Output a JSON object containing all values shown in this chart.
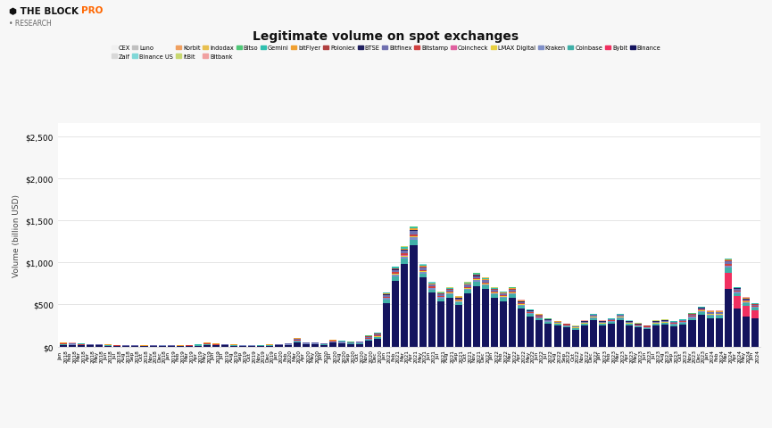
{
  "title": "Legitimate volume on spot exchanges",
  "ylabel": "Volume (billion USD)",
  "background_color": "#f7f7f7",
  "plot_bg_color": "#ffffff",
  "yticks": [
    0,
    500,
    1000,
    1500,
    2000,
    2500
  ],
  "ylim": [
    0,
    2650
  ],
  "legend_row1": [
    "CEX",
    "Zaif",
    "Luno",
    "Binance US",
    "Korbit",
    "itBit",
    "Indodax",
    "Bitbank",
    "Bitso",
    "Gemini",
    "bitFlyer",
    "Poloniex",
    "BTSE",
    "Bitfinex",
    "Bitstamp",
    "Coincheck",
    "LMAX Digital"
  ],
  "legend_row2": [
    "Kraken",
    "Coinbase",
    "Bybit",
    "Binance"
  ],
  "exchanges": [
    "CEX",
    "Zaif",
    "Luno",
    "Binance US",
    "Korbit",
    "itBit",
    "Indodax",
    "Bitbank",
    "Bitso",
    "Gemini",
    "bitFlyer",
    "Poloniex",
    "BTSE",
    "Bitfinex",
    "Bitstamp",
    "Coincheck",
    "LMAX Digital",
    "Kraken",
    "Coinbase",
    "Bybit",
    "Binance"
  ],
  "colors": {
    "CEX": "#f0f0f0",
    "Zaif": "#d8d8d8",
    "Luno": "#c0c0c0",
    "Binance US": "#80d8d8",
    "Korbit": "#f0a060",
    "itBit": "#c8d870",
    "Indodax": "#e8c050",
    "Bitbank": "#f0a0a0",
    "Bitso": "#50c878",
    "Gemini": "#30c0b0",
    "bitFlyer": "#f0a030",
    "Poloniex": "#b04040",
    "BTSE": "#202060",
    "Bitfinex": "#7070b0",
    "Bitstamp": "#d04040",
    "Coincheck": "#e060a0",
    "LMAX Digital": "#e8d040",
    "Kraken": "#8090c8",
    "Coinbase": "#40b0a8",
    "Bybit": "#f03060",
    "Binance": "#14145e"
  },
  "months": [
    "Jan\n2018",
    "Feb\n2018",
    "Mar\n2018",
    "Apr\n2018",
    "May\n2018",
    "Jun\n2018",
    "Jul\n2018",
    "Aug\n2018",
    "Sep\n2018",
    "Oct\n2018",
    "Nov\n2018",
    "Dec\n2018",
    "Jan\n2019",
    "Feb\n2019",
    "Mar\n2019",
    "Apr\n2019",
    "May\n2019",
    "Jun\n2019",
    "Jul\n2019",
    "Aug\n2019",
    "Sep\n2019",
    "Oct\n2019",
    "Nov\n2019",
    "Dec\n2019",
    "Jan\n2020",
    "Feb\n2020",
    "Mar\n2020",
    "Apr\n2020",
    "May\n2020",
    "Jun\n2020",
    "Jul\n2020",
    "Aug\n2020",
    "Sep\n2020",
    "Oct\n2020",
    "Nov\n2020",
    "Dec\n2020",
    "Jan\n2021",
    "Feb\n2021",
    "Mar\n2021",
    "Apr\n2021",
    "May\n2021",
    "Jun\n2021",
    "Jul\n2021",
    "Aug\n2021",
    "Sep\n2021",
    "Oct\n2021",
    "Nov\n2021",
    "Dec\n2021",
    "Jan\n2022",
    "Feb\n2022",
    "Mar\n2022",
    "Apr\n2022",
    "May\n2022",
    "Jun\n2022",
    "Jul\n2022",
    "Aug\n2022",
    "Sep\n2022",
    "Oct\n2022",
    "Nov\n2022",
    "Dec\n2022",
    "Jan\n2023",
    "Feb\n2023",
    "Mar\n2023",
    "Apr\n2023",
    "May\n2023",
    "Jun\n2023",
    "Jul\n2023",
    "Aug\n2023",
    "Sep\n2023",
    "Oct\n2023",
    "Nov\n2023",
    "Dec\n2023",
    "Jan\n2024",
    "Feb\n2024",
    "Mar\n2024",
    "Apr\n2024",
    "May\n2024",
    "Jun\n2024"
  ],
  "data": {
    "Binance": [
      20,
      18,
      15,
      14,
      12,
      10,
      8,
      7,
      6,
      5,
      6,
      8,
      6,
      5,
      6,
      9,
      20,
      14,
      12,
      10,
      8,
      7,
      8,
      10,
      12,
      16,
      50,
      25,
      25,
      20,
      45,
      35,
      28,
      32,
      70,
      90,
      520,
      780,
      980,
      1200,
      820,
      640,
      540,
      580,
      490,
      630,
      720,
      680,
      580,
      540,
      580,
      450,
      360,
      315,
      270,
      250,
      225,
      200,
      250,
      315,
      250,
      270,
      315,
      250,
      225,
      205,
      250,
      260,
      242,
      260,
      315,
      375,
      340,
      340,
      680,
      450,
      360,
      340
    ],
    "Bybit": [
      0,
      0,
      0,
      0,
      0,
      0,
      0,
      0,
      0,
      0,
      0,
      0,
      0,
      0,
      0,
      0,
      0,
      0,
      0,
      0,
      0,
      0,
      0,
      0,
      0,
      0,
      0,
      0,
      0,
      0,
      0,
      0,
      0,
      0,
      0,
      0,
      0,
      0,
      0,
      0,
      0,
      0,
      0,
      0,
      0,
      0,
      0,
      0,
      0,
      0,
      0,
      0,
      0,
      0,
      0,
      0,
      0,
      0,
      0,
      0,
      0,
      0,
      0,
      0,
      0,
      0,
      0,
      0,
      0,
      0,
      0,
      0,
      0,
      0,
      200,
      150,
      120,
      90
    ],
    "Coinbase": [
      5,
      4,
      4,
      3,
      3,
      3,
      2,
      2,
      2,
      2,
      3,
      3,
      3,
      2,
      3,
      4,
      7,
      5,
      4,
      4,
      3,
      3,
      4,
      4,
      4,
      6,
      13,
      7,
      7,
      6,
      9,
      8,
      7,
      8,
      14,
      18,
      38,
      50,
      60,
      65,
      45,
      36,
      32,
      36,
      32,
      40,
      46,
      42,
      36,
      34,
      38,
      32,
      26,
      22,
      20,
      18,
      16,
      15,
      18,
      22,
      18,
      20,
      22,
      18,
      16,
      15,
      18,
      19,
      18,
      20,
      25,
      32,
      27,
      27,
      55,
      36,
      34,
      27
    ],
    "Kraken": [
      3,
      2,
      2,
      2,
      2,
      2,
      1,
      1,
      1,
      1,
      1,
      2,
      1,
      1,
      2,
      2,
      4,
      3,
      2,
      2,
      2,
      2,
      2,
      2,
      2,
      3,
      7,
      4,
      4,
      3,
      5,
      4,
      3,
      4,
      7,
      9,
      16,
      22,
      27,
      29,
      20,
      16,
      14,
      16,
      14,
      18,
      20,
      18,
      16,
      15,
      16,
      14,
      11,
      9,
      8,
      7,
      7,
      6,
      8,
      10,
      8,
      9,
      10,
      8,
      7,
      7,
      8,
      8,
      8,
      9,
      11,
      14,
      12,
      12,
      22,
      15,
      14,
      12
    ],
    "LMAX Digital": [
      0,
      0,
      0,
      0,
      0,
      0,
      0,
      0,
      0,
      0,
      0,
      0,
      0,
      0,
      0,
      0,
      0,
      0,
      0,
      0,
      0,
      0,
      0,
      0,
      0,
      0,
      2,
      1,
      1,
      1,
      2,
      2,
      2,
      2,
      5,
      6,
      8,
      12,
      14,
      15,
      10,
      8,
      7,
      8,
      7,
      9,
      10,
      9,
      8,
      7,
      8,
      6,
      5,
      4,
      4,
      3,
      3,
      3,
      4,
      5,
      4,
      4,
      5,
      4,
      3,
      3,
      4,
      4,
      4,
      4,
      5,
      6,
      5,
      5,
      8,
      5,
      5,
      4
    ],
    "Coincheck": [
      2,
      2,
      1,
      1,
      1,
      0,
      0,
      0,
      0,
      0,
      0,
      0,
      0,
      0,
      0,
      0,
      0,
      0,
      0,
      0,
      0,
      0,
      0,
      0,
      0,
      0,
      0,
      0,
      0,
      0,
      0,
      0,
      0,
      0,
      0,
      0,
      0,
      0,
      1,
      1,
      1,
      0,
      0,
      0,
      0,
      0,
      0,
      0,
      0,
      0,
      0,
      0,
      0,
      0,
      0,
      0,
      0,
      0,
      0,
      0,
      0,
      0,
      0,
      0,
      0,
      0,
      0,
      0,
      0,
      0,
      0,
      0,
      0,
      0,
      0,
      0,
      0,
      0
    ],
    "Bitstamp": [
      3,
      2,
      2,
      2,
      2,
      2,
      1,
      1,
      1,
      1,
      1,
      2,
      1,
      1,
      2,
      2,
      4,
      3,
      2,
      2,
      2,
      2,
      2,
      2,
      2,
      3,
      6,
      3,
      3,
      2,
      4,
      3,
      3,
      3,
      6,
      8,
      12,
      18,
      22,
      24,
      16,
      13,
      11,
      12,
      11,
      14,
      16,
      14,
      12,
      12,
      13,
      11,
      9,
      7,
      6,
      6,
      5,
      5,
      6,
      8,
      6,
      7,
      8,
      6,
      5,
      5,
      6,
      6,
      6,
      7,
      9,
      11,
      9,
      9,
      18,
      12,
      11,
      9
    ],
    "Bitfinex": [
      8,
      7,
      6,
      5,
      4,
      4,
      3,
      2,
      2,
      2,
      2,
      3,
      2,
      2,
      3,
      3,
      6,
      5,
      4,
      3,
      3,
      3,
      3,
      3,
      4,
      5,
      11,
      5,
      5,
      5,
      7,
      6,
      5,
      6,
      12,
      14,
      20,
      28,
      35,
      38,
      26,
      20,
      18,
      20,
      17,
      22,
      26,
      23,
      20,
      19,
      20,
      17,
      13,
      11,
      10,
      9,
      8,
      7,
      10,
      12,
      10,
      11,
      12,
      10,
      9,
      8,
      10,
      10,
      10,
      11,
      13,
      16,
      14,
      14,
      28,
      19,
      18,
      14
    ],
    "BTSE": [
      0,
      0,
      0,
      0,
      0,
      0,
      0,
      0,
      0,
      0,
      0,
      0,
      0,
      0,
      0,
      0,
      0,
      0,
      0,
      0,
      0,
      0,
      0,
      0,
      0,
      0,
      1,
      0,
      0,
      0,
      1,
      1,
      1,
      1,
      2,
      3,
      4,
      6,
      7,
      8,
      5,
      4,
      3,
      4,
      3,
      4,
      5,
      4,
      4,
      3,
      4,
      3,
      2,
      2,
      2,
      1,
      1,
      1,
      2,
      2,
      2,
      2,
      2,
      2,
      2,
      1,
      2,
      2,
      2,
      2,
      3,
      3,
      3,
      3,
      6,
      4,
      4,
      3
    ],
    "Poloniex": [
      2,
      2,
      1,
      1,
      1,
      1,
      1,
      1,
      1,
      0,
      0,
      1,
      0,
      0,
      1,
      1,
      2,
      1,
      1,
      1,
      1,
      1,
      1,
      1,
      1,
      1,
      3,
      1,
      1,
      1,
      2,
      2,
      1,
      2,
      3,
      4,
      5,
      7,
      8,
      9,
      6,
      5,
      4,
      5,
      4,
      5,
      6,
      5,
      5,
      4,
      5,
      4,
      3,
      2,
      2,
      2,
      2,
      1,
      2,
      3,
      2,
      2,
      3,
      2,
      2,
      2,
      2,
      2,
      2,
      2,
      3,
      3,
      3,
      3,
      6,
      4,
      4,
      3
    ],
    "bitFlyer": [
      2,
      2,
      1,
      1,
      1,
      1,
      1,
      1,
      1,
      1,
      1,
      1,
      1,
      1,
      1,
      1,
      2,
      2,
      1,
      1,
      1,
      1,
      1,
      1,
      1,
      2,
      4,
      2,
      2,
      2,
      3,
      2,
      2,
      2,
      4,
      5,
      7,
      10,
      12,
      13,
      9,
      7,
      6,
      7,
      6,
      8,
      9,
      8,
      7,
      6,
      7,
      6,
      4,
      4,
      3,
      3,
      3,
      2,
      3,
      4,
      3,
      3,
      4,
      3,
      3,
      2,
      3,
      3,
      3,
      3,
      4,
      5,
      4,
      4,
      8,
      5,
      5,
      4
    ],
    "Gemini": [
      2,
      2,
      1,
      1,
      1,
      1,
      1,
      1,
      1,
      1,
      1,
      1,
      1,
      1,
      1,
      1,
      2,
      2,
      1,
      1,
      1,
      1,
      1,
      1,
      1,
      2,
      5,
      2,
      2,
      2,
      3,
      3,
      2,
      2,
      5,
      6,
      8,
      12,
      14,
      15,
      10,
      8,
      7,
      8,
      7,
      9,
      11,
      10,
      8,
      8,
      8,
      7,
      5,
      4,
      4,
      3,
      3,
      3,
      4,
      5,
      4,
      4,
      5,
      3,
      3,
      3,
      4,
      4,
      3,
      4,
      5,
      6,
      5,
      5,
      10,
      6,
      6,
      5
    ],
    "Bitso": [
      1,
      1,
      0,
      0,
      0,
      0,
      0,
      0,
      0,
      0,
      0,
      1,
      0,
      0,
      0,
      0,
      1,
      1,
      0,
      0,
      0,
      0,
      0,
      0,
      0,
      0,
      1,
      1,
      1,
      0,
      1,
      1,
      1,
      1,
      1,
      2,
      2,
      3,
      4,
      4,
      3,
      2,
      2,
      2,
      2,
      2,
      2,
      2,
      2,
      2,
      2,
      2,
      1,
      1,
      1,
      1,
      1,
      1,
      1,
      1,
      1,
      1,
      1,
      1,
      1,
      1,
      1,
      1,
      1,
      1,
      2,
      2,
      2,
      2,
      3,
      2,
      2,
      2
    ],
    "Bitbank": [
      2,
      2,
      1,
      0,
      0,
      0,
      0,
      0,
      0,
      0,
      0,
      0,
      0,
      0,
      0,
      0,
      1,
      0,
      0,
      0,
      0,
      0,
      0,
      0,
      0,
      0,
      1,
      0,
      0,
      0,
      0,
      0,
      0,
      0,
      1,
      1,
      1,
      2,
      2,
      2,
      1,
      1,
      1,
      1,
      1,
      1,
      1,
      1,
      1,
      1,
      1,
      1,
      1,
      1,
      0,
      0,
      0,
      0,
      1,
      1,
      1,
      1,
      1,
      0,
      0,
      0,
      0,
      0,
      0,
      0,
      1,
      1,
      1,
      1,
      1,
      1,
      1,
      0
    ],
    "Indodax": [
      0,
      0,
      0,
      0,
      0,
      0,
      0,
      0,
      0,
      0,
      0,
      0,
      0,
      0,
      0,
      0,
      0,
      0,
      0,
      0,
      0,
      0,
      0,
      0,
      0,
      0,
      0,
      0,
      0,
      0,
      0,
      0,
      0,
      0,
      0,
      0,
      1,
      1,
      1,
      1,
      1,
      1,
      1,
      1,
      1,
      1,
      1,
      1,
      1,
      1,
      1,
      1,
      1,
      1,
      0,
      0,
      0,
      0,
      0,
      0,
      0,
      0,
      0,
      0,
      0,
      0,
      0,
      0,
      0,
      0,
      0,
      0,
      0,
      0,
      0,
      0,
      0,
      0
    ],
    "itBit": [
      0,
      0,
      0,
      0,
      0,
      0,
      0,
      0,
      0,
      0,
      0,
      0,
      0,
      0,
      0,
      0,
      0,
      0,
      0,
      0,
      0,
      0,
      0,
      0,
      0,
      0,
      1,
      0,
      0,
      0,
      1,
      1,
      0,
      0,
      1,
      1,
      2,
      3,
      3,
      4,
      2,
      2,
      2,
      2,
      2,
      2,
      2,
      2,
      2,
      2,
      2,
      1,
      1,
      1,
      1,
      1,
      1,
      1,
      1,
      1,
      1,
      1,
      1,
      1,
      1,
      1,
      1,
      1,
      1,
      1,
      1,
      1,
      1,
      1,
      2,
      1,
      1,
      1
    ],
    "Korbit": [
      0,
      0,
      0,
      0,
      0,
      0,
      0,
      0,
      0,
      0,
      0,
      0,
      0,
      0,
      0,
      0,
      0,
      0,
      0,
      0,
      0,
      0,
      0,
      0,
      0,
      0,
      0,
      0,
      0,
      0,
      0,
      0,
      0,
      0,
      0,
      0,
      0,
      0,
      0,
      0,
      0,
      0,
      0,
      0,
      0,
      0,
      0,
      0,
      0,
      0,
      0,
      0,
      0,
      0,
      0,
      0,
      0,
      0,
      0,
      0,
      0,
      0,
      0,
      0,
      0,
      0,
      0,
      0,
      0,
      0,
      0,
      0,
      0,
      0,
      0,
      0,
      0,
      0
    ],
    "Binance US": [
      0,
      0,
      0,
      0,
      0,
      0,
      0,
      0,
      0,
      0,
      0,
      0,
      0,
      0,
      0,
      0,
      0,
      0,
      0,
      0,
      0,
      0,
      0,
      0,
      0,
      0,
      0,
      0,
      0,
      0,
      0,
      0,
      0,
      0,
      0,
      0,
      0,
      0,
      1,
      2,
      1,
      1,
      1,
      1,
      1,
      1,
      1,
      1,
      1,
      1,
      1,
      1,
      1,
      1,
      1,
      1,
      1,
      1,
      1,
      1,
      1,
      1,
      1,
      1,
      1,
      1,
      1,
      1,
      1,
      1,
      1,
      1,
      1,
      1,
      1,
      1,
      1,
      1
    ],
    "Luno": [
      0,
      0,
      0,
      0,
      0,
      0,
      0,
      0,
      0,
      0,
      0,
      0,
      0,
      0,
      0,
      0,
      0,
      0,
      0,
      0,
      0,
      0,
      0,
      0,
      0,
      0,
      0,
      0,
      0,
      0,
      0,
      0,
      0,
      0,
      0,
      0,
      0,
      0,
      0,
      0,
      0,
      0,
      0,
      0,
      0,
      0,
      0,
      0,
      0,
      0,
      0,
      0,
      0,
      0,
      0,
      0,
      0,
      0,
      0,
      0,
      0,
      0,
      0,
      0,
      0,
      0,
      0,
      0,
      0,
      0,
      0,
      0,
      0,
      0,
      0,
      0,
      0,
      0
    ],
    "Zaif": [
      0,
      0,
      0,
      0,
      0,
      0,
      0,
      0,
      0,
      0,
      0,
      0,
      0,
      0,
      0,
      0,
      0,
      0,
      0,
      0,
      0,
      0,
      0,
      0,
      0,
      0,
      0,
      0,
      0,
      0,
      0,
      0,
      0,
      0,
      0,
      0,
      0,
      0,
      0,
      0,
      0,
      0,
      0,
      0,
      0,
      0,
      0,
      0,
      0,
      0,
      0,
      0,
      0,
      0,
      0,
      0,
      0,
      0,
      0,
      0,
      0,
      0,
      0,
      0,
      0,
      0,
      0,
      0,
      0,
      0,
      0,
      0,
      0,
      0,
      0,
      0,
      0,
      0
    ],
    "CEX": [
      0,
      0,
      0,
      0,
      0,
      0,
      0,
      0,
      0,
      0,
      0,
      0,
      0,
      0,
      0,
      0,
      0,
      0,
      0,
      0,
      0,
      0,
      0,
      0,
      0,
      0,
      0,
      0,
      0,
      0,
      0,
      0,
      0,
      0,
      0,
      0,
      0,
      0,
      0,
      0,
      0,
      0,
      0,
      0,
      0,
      0,
      0,
      0,
      0,
      0,
      0,
      0,
      0,
      0,
      0,
      0,
      0,
      0,
      0,
      0,
      0,
      0,
      0,
      0,
      0,
      0,
      0,
      0,
      0,
      0,
      0,
      0,
      0,
      0,
      0,
      0,
      0,
      0
    ]
  }
}
